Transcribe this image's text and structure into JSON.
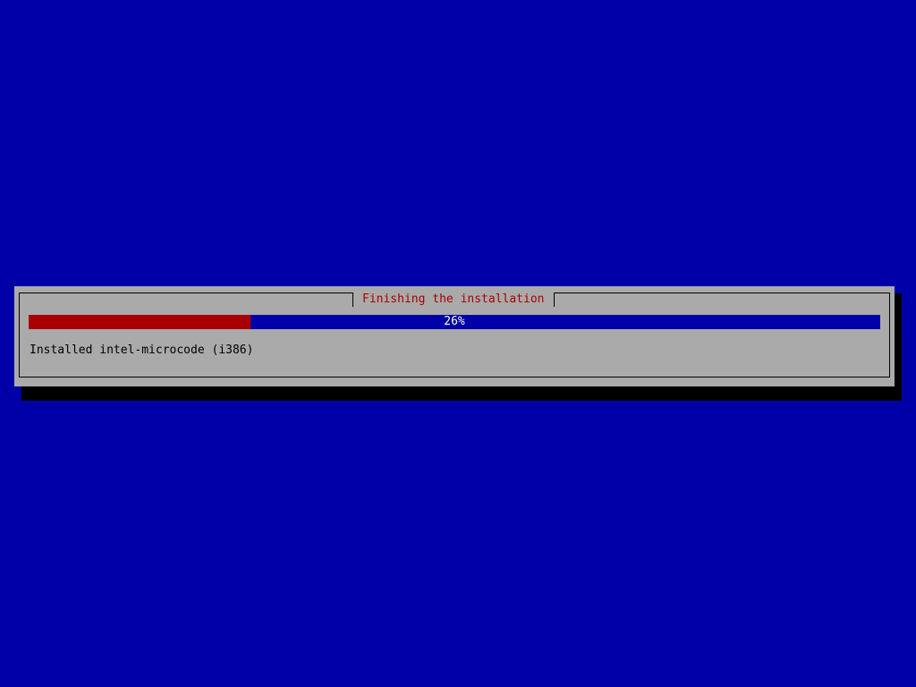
{
  "dialog": {
    "title": "Finishing the installation",
    "progress_percent": 26,
    "progress_label": "26%",
    "status": "Installed intel-microcode (i386)"
  },
  "colors": {
    "background": "#0000a8",
    "dialog": "#aaaaaa",
    "progress_fill": "#a80000",
    "title": "#a80000"
  }
}
